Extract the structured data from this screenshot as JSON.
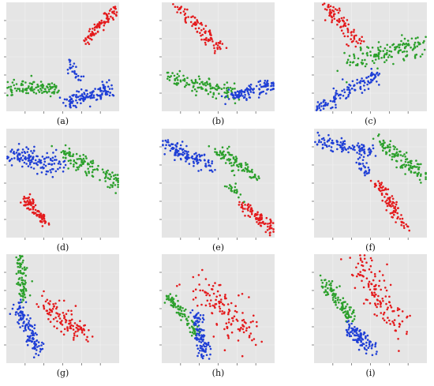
{
  "chart_data": [
    {
      "id": "a",
      "type": "scatter",
      "caption": "(a)",
      "xlim": [
        0,
        10
      ],
      "ylim": [
        0,
        10
      ],
      "series": [
        {
          "color": "#e41a1c",
          "clusters": [
            {
              "from": [
                6.8,
                6.3
              ],
              "to": [
                9.7,
                9.4
              ],
              "spread": 0.45,
              "n": 95
            }
          ]
        },
        {
          "color": "#2ca02c",
          "clusters": [
            {
              "from": [
                0.3,
                2.2
              ],
              "to": [
                4.5,
                2.0
              ],
              "spread": 0.55,
              "n": 110
            }
          ]
        },
        {
          "color": "#1f3fd6",
          "clusters": [
            {
              "from": [
                5.3,
                0.9
              ],
              "to": [
                9.2,
                2.0
              ],
              "spread": 0.6,
              "n": 130
            },
            {
              "from": [
                5.6,
                4.6
              ],
              "to": [
                6.5,
                2.8
              ],
              "spread": 0.35,
              "n": 25
            }
          ]
        }
      ]
    },
    {
      "id": "b",
      "type": "scatter",
      "caption": "(b)",
      "xlim": [
        0,
        10
      ],
      "ylim": [
        0,
        10
      ],
      "series": [
        {
          "color": "#e41a1c",
          "clusters": [
            {
              "from": [
                1.5,
                9.5
              ],
              "to": [
                5.2,
                5.7
              ],
              "spread": 0.55,
              "n": 95
            }
          ]
        },
        {
          "color": "#2ca02c",
          "clusters": [
            {
              "from": [
                0.5,
                3.2
              ],
              "to": [
                6.3,
                1.8
              ],
              "spread": 0.7,
              "n": 120
            }
          ]
        },
        {
          "color": "#1f3fd6",
          "clusters": [
            {
              "from": [
                5.8,
                1.2
              ],
              "to": [
                9.7,
                2.4
              ],
              "spread": 0.55,
              "n": 110
            }
          ]
        }
      ]
    },
    {
      "id": "c",
      "type": "scatter",
      "caption": "(c)",
      "xlim": [
        0,
        10
      ],
      "ylim": [
        0,
        10
      ],
      "series": [
        {
          "color": "#e41a1c",
          "clusters": [
            {
              "from": [
                1.0,
                9.7
              ],
              "to": [
                4.0,
                6.3
              ],
              "spread": 0.65,
              "n": 85
            }
          ]
        },
        {
          "color": "#2ca02c",
          "clusters": [
            {
              "from": [
                3.2,
                4.5
              ],
              "to": [
                9.7,
                6.3
              ],
              "spread": 0.9,
              "n": 150
            }
          ]
        },
        {
          "color": "#1f3fd6",
          "clusters": [
            {
              "from": [
                0.3,
                0.3
              ],
              "to": [
                5.5,
                3.3
              ],
              "spread": 0.6,
              "n": 125
            }
          ]
        }
      ]
    },
    {
      "id": "d",
      "type": "scatter",
      "caption": "(d)",
      "xlim": [
        0,
        10
      ],
      "ylim": [
        0,
        10
      ],
      "series": [
        {
          "color": "#1f3fd6",
          "clusters": [
            {
              "from": [
                0.5,
                7.5
              ],
              "to": [
                5.0,
                6.5
              ],
              "spread": 0.9,
              "n": 135
            }
          ]
        },
        {
          "color": "#2ca02c",
          "clusters": [
            {
              "from": [
                5.0,
                7.8
              ],
              "to": [
                9.8,
                5.0
              ],
              "spread": 0.7,
              "n": 125
            }
          ]
        },
        {
          "color": "#e41a1c",
          "clusters": [
            {
              "from": [
                1.6,
                3.8
              ],
              "to": [
                3.5,
                1.2
              ],
              "spread": 0.45,
              "n": 85
            }
          ]
        }
      ]
    },
    {
      "id": "e",
      "type": "scatter",
      "caption": "(e)",
      "xlim": [
        0,
        10
      ],
      "ylim": [
        0,
        10
      ],
      "series": [
        {
          "color": "#1f3fd6",
          "clusters": [
            {
              "from": [
                0.3,
                8.6
              ],
              "to": [
                4.5,
                6.6
              ],
              "spread": 0.65,
              "n": 125
            }
          ]
        },
        {
          "color": "#2ca02c",
          "clusters": [
            {
              "from": [
                4.8,
                8.0
              ],
              "to": [
                8.2,
                5.8
              ],
              "spread": 0.6,
              "n": 95
            },
            {
              "from": [
                5.8,
                5.0
              ],
              "to": [
                7.5,
                3.3
              ],
              "spread": 0.3,
              "n": 22
            }
          ]
        },
        {
          "color": "#e41a1c",
          "clusters": [
            {
              "from": [
                7.2,
                3.0
              ],
              "to": [
                9.8,
                0.6
              ],
              "spread": 0.45,
              "n": 85
            }
          ]
        }
      ]
    },
    {
      "id": "f",
      "type": "scatter",
      "caption": "(f)",
      "xlim": [
        0,
        10
      ],
      "ylim": [
        0,
        10
      ],
      "series": [
        {
          "color": "#1f3fd6",
          "clusters": [
            {
              "from": [
                0.3,
                8.8
              ],
              "to": [
                5.0,
                8.0
              ],
              "spread": 0.55,
              "n": 100
            },
            {
              "from": [
                4.0,
                7.5
              ],
              "to": [
                4.8,
                5.5
              ],
              "spread": 0.35,
              "n": 30
            }
          ]
        },
        {
          "color": "#2ca02c",
          "clusters": [
            {
              "from": [
                5.5,
                9.0
              ],
              "to": [
                9.8,
                5.6
              ],
              "spread": 0.65,
              "n": 115
            }
          ]
        },
        {
          "color": "#e41a1c",
          "clusters": [
            {
              "from": [
                5.6,
                5.0
              ],
              "to": [
                8.2,
                0.8
              ],
              "spread": 0.5,
              "n": 95
            }
          ]
        }
      ]
    },
    {
      "id": "g",
      "type": "scatter",
      "caption": "(g)",
      "xlim": [
        0,
        10
      ],
      "ylim": [
        0,
        10
      ],
      "series": [
        {
          "color": "#2ca02c",
          "clusters": [
            {
              "from": [
                1.2,
                9.8
              ],
              "to": [
                1.6,
                5.8
              ],
              "spread": 0.4,
              "n": 85
            }
          ]
        },
        {
          "color": "#1f3fd6",
          "clusters": [
            {
              "from": [
                1.0,
                5.5
              ],
              "to": [
                2.8,
                1.0
              ],
              "spread": 0.55,
              "n": 125
            }
          ]
        },
        {
          "color": "#e41a1c",
          "clusters": [
            {
              "from": [
                3.5,
                5.5
              ],
              "to": [
                7.0,
                2.5
              ],
              "spread": 1.0,
              "n": 110
            }
          ]
        }
      ]
    },
    {
      "id": "h",
      "type": "scatter",
      "caption": "(h)",
      "xlim": [
        0,
        10
      ],
      "ylim": [
        0,
        10
      ],
      "series": [
        {
          "color": "#2ca02c",
          "clusters": [
            {
              "from": [
                0.5,
                6.2
              ],
              "to": [
                3.2,
                2.8
              ],
              "spread": 0.4,
              "n": 95
            }
          ]
        },
        {
          "color": "#1f3fd6",
          "clusters": [
            {
              "from": [
                3.0,
                4.5
              ],
              "to": [
                3.8,
                0.6
              ],
              "spread": 0.55,
              "n": 105
            }
          ]
        },
        {
          "color": "#e41a1c",
          "clusters": [
            {
              "from": [
                3.5,
                7.0
              ],
              "to": [
                7.5,
                2.5
              ],
              "spread": 1.4,
              "n": 130
            }
          ]
        }
      ]
    },
    {
      "id": "i",
      "type": "scatter",
      "caption": "(i)",
      "xlim": [
        0,
        10
      ],
      "ylim": [
        0,
        10
      ],
      "series": [
        {
          "color": "#2ca02c",
          "clusters": [
            {
              "from": [
                0.6,
                7.8
              ],
              "to": [
                3.4,
                4.0
              ],
              "spread": 0.55,
              "n": 105
            }
          ]
        },
        {
          "color": "#1f3fd6",
          "clusters": [
            {
              "from": [
                2.8,
                3.5
              ],
              "to": [
                5.2,
                1.2
              ],
              "spread": 0.55,
              "n": 105
            }
          ]
        },
        {
          "color": "#e41a1c",
          "clusters": [
            {
              "from": [
                4.0,
                9.0
              ],
              "to": [
                8.0,
                3.0
              ],
              "spread": 1.3,
              "n": 130
            }
          ]
        }
      ]
    }
  ]
}
